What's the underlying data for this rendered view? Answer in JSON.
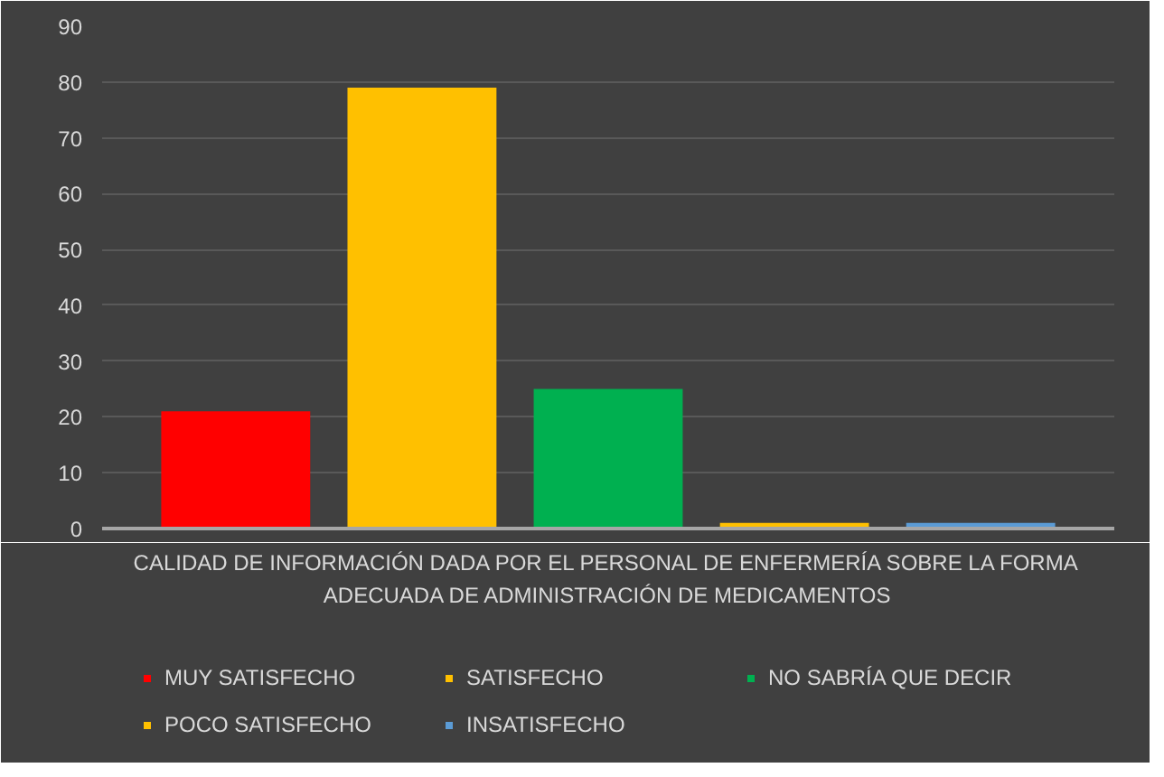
{
  "chart_data": {
    "type": "bar",
    "categories": [
      "CALIDAD DE INFORMACIÓN DADA POR EL PERSONAL DE ENFERMERÍA SOBRE LA FORMA ADECUADA DE ADMINISTRACIÓN DE MEDICAMENTOS"
    ],
    "series": [
      {
        "name": "MUY SATISFECHO",
        "color": "#ff0000",
        "values": [
          21
        ]
      },
      {
        "name": "SATISFECHO",
        "color": "#ffc000",
        "values": [
          79
        ]
      },
      {
        "name": "NO SABRÍA QUE DECIR",
        "color": "#00b050",
        "values": [
          25
        ]
      },
      {
        "name": "POCO SATISFECHO",
        "color": "#ffc000",
        "values": [
          1
        ]
      },
      {
        "name": "INSATISFECHO",
        "color": "#5b9bd5",
        "values": [
          1
        ]
      }
    ],
    "ylim": [
      0,
      90
    ],
    "yticks": [
      0,
      10,
      20,
      30,
      40,
      50,
      60,
      70,
      80,
      90
    ],
    "grid": "y",
    "legend": "bottom"
  }
}
